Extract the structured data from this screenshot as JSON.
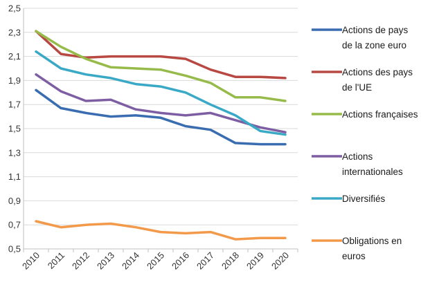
{
  "chart_data": {
    "type": "line",
    "title": "",
    "xlabel": "",
    "ylabel": "",
    "x": [
      "2010",
      "2011",
      "2012",
      "2013",
      "2014",
      "2015",
      "2016",
      "2017",
      "2018",
      "2019",
      "2020"
    ],
    "ylim": [
      0.5,
      2.5
    ],
    "yticks": [
      "0,5",
      "0,7",
      "0,9",
      "1,1",
      "1,3",
      "1,5",
      "1,7",
      "1,9",
      "2,1",
      "2,3",
      "2,5"
    ],
    "grid": "horizontal",
    "legend_position": "right",
    "series": [
      {
        "name": "Actions de pays de la zone euro",
        "name_lines": [
          "Actions de pays",
          "de la zone euro"
        ],
        "color": "#3a6db0",
        "values": [
          1.82,
          1.67,
          1.63,
          1.6,
          1.61,
          1.59,
          1.52,
          1.49,
          1.38,
          1.37,
          1.37
        ]
      },
      {
        "name": "Actions des pays de l'UE",
        "name_lines": [
          "Actions des pays",
          "de l'UE"
        ],
        "color": "#b84842",
        "values": [
          2.31,
          2.12,
          2.09,
          2.1,
          2.1,
          2.1,
          2.08,
          1.99,
          1.93,
          1.93,
          1.92
        ]
      },
      {
        "name": "Actions françaises",
        "name_lines": [
          "Actions françaises"
        ],
        "color": "#96bb4a",
        "values": [
          2.31,
          2.18,
          2.08,
          2.01,
          2.0,
          1.99,
          1.94,
          1.88,
          1.76,
          1.76,
          1.73
        ]
      },
      {
        "name": "Actions internationales",
        "name_lines": [
          "Actions",
          "internationales"
        ],
        "color": "#7e5ea3",
        "values": [
          1.95,
          1.81,
          1.73,
          1.74,
          1.66,
          1.63,
          1.61,
          1.63,
          1.57,
          1.51,
          1.47
        ]
      },
      {
        "name": "Diversifiés",
        "name_lines": [
          "Diversifiés"
        ],
        "color": "#3aa9c6",
        "values": [
          2.14,
          2.0,
          1.95,
          1.92,
          1.87,
          1.85,
          1.8,
          1.7,
          1.61,
          1.48,
          1.45
        ]
      },
      {
        "name": "Obligations en euros",
        "name_lines": [
          "Obligations en",
          "euros"
        ],
        "color": "#f29a4a",
        "values": [
          0.73,
          0.68,
          0.7,
          0.71,
          0.68,
          0.64,
          0.63,
          0.64,
          0.58,
          0.59,
          0.59
        ]
      }
    ]
  }
}
